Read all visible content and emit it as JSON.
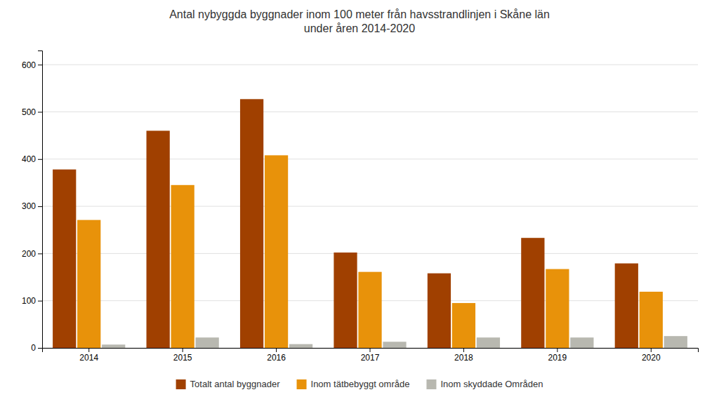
{
  "chart_data": {
    "type": "bar",
    "title": "Antal nybyggda byggnader inom 100 meter från havsstrandlinjen i Skåne län\nunder åren 2014-2020",
    "categories": [
      "2014",
      "2015",
      "2016",
      "2017",
      "2018",
      "2019",
      "2020"
    ],
    "series": [
      {
        "name": "Totalt antal byggnader",
        "color": "#A04000",
        "values": [
          378,
          460,
          527,
          202,
          158,
          233,
          179
        ]
      },
      {
        "name": "Inom tätbebyggt område",
        "color": "#E8920A",
        "values": [
          271,
          345,
          408,
          161,
          95,
          167,
          119
        ]
      },
      {
        "name": "Inom skyddade Områden",
        "color": "#B8B8B0",
        "values": [
          7,
          22,
          8,
          13,
          22,
          22,
          25
        ]
      }
    ],
    "ylim": [
      0,
      630
    ],
    "yticks": [
      0,
      100,
      200,
      300,
      400,
      500,
      600
    ],
    "grid": true,
    "legend": "bottom"
  }
}
